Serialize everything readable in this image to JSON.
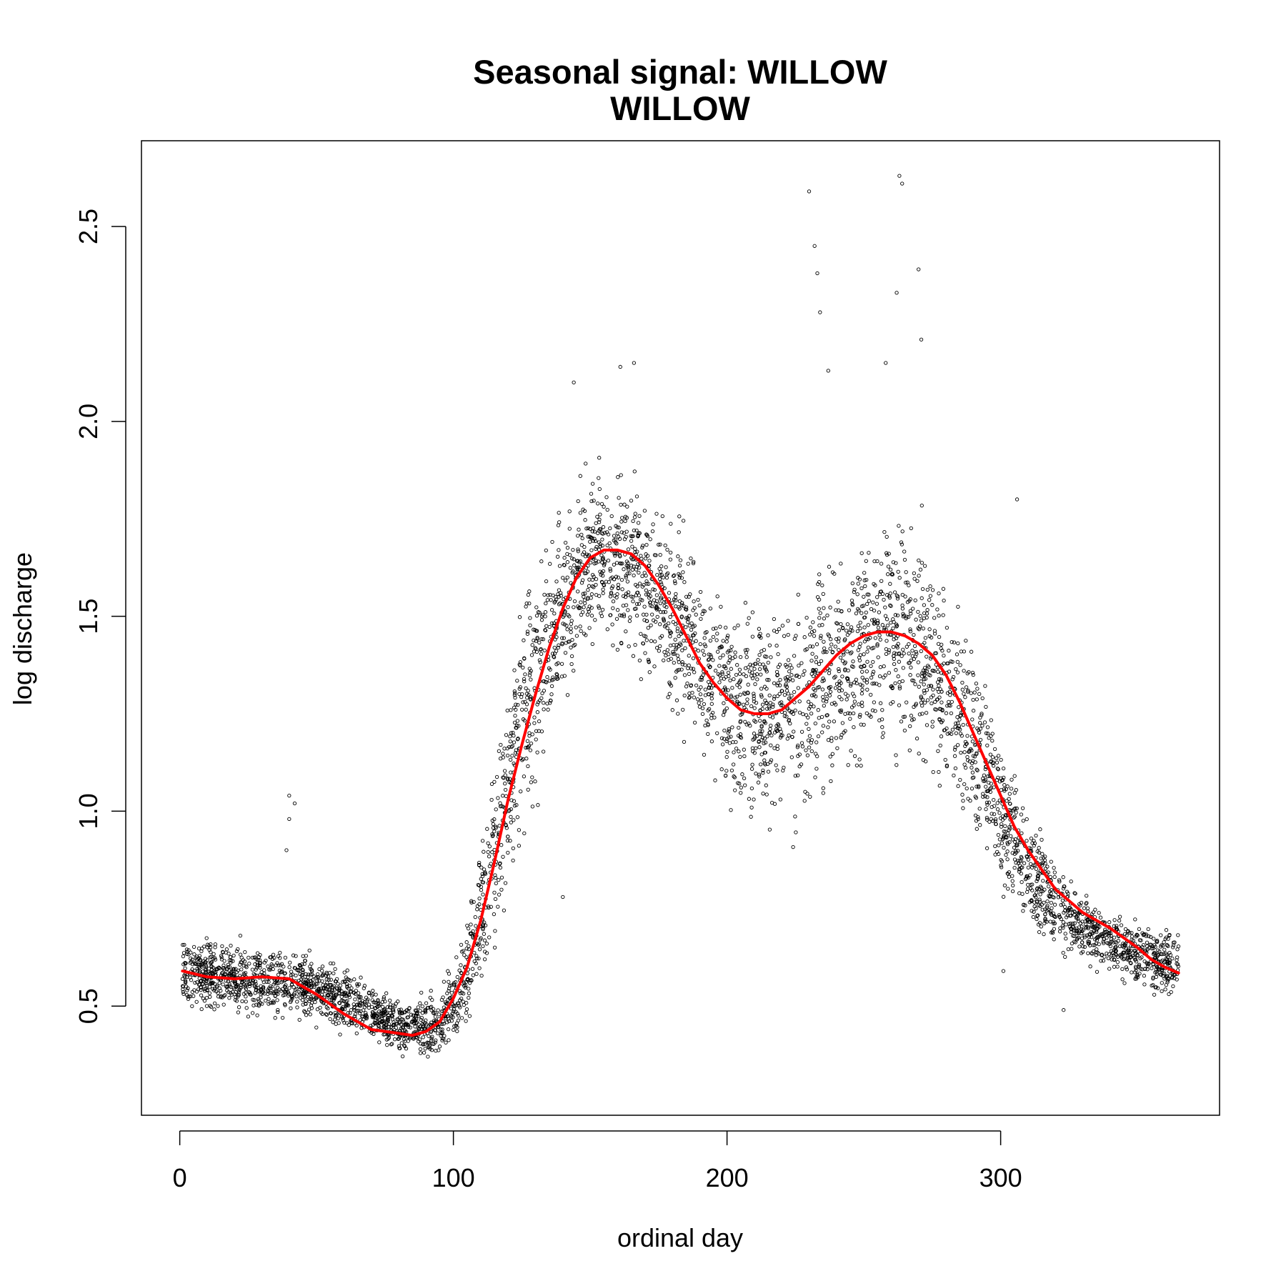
{
  "chart_data": {
    "type": "scatter",
    "title": [
      "Seasonal signal: WILLOW",
      "WILLOW"
    ],
    "xlabel": "ordinal day",
    "ylabel": "log discharge",
    "xlim": [
      -14,
      380
    ],
    "ylim": [
      0.22,
      2.72
    ],
    "xticks": [
      0,
      100,
      200,
      300
    ],
    "yticks": [
      0.5,
      1.0,
      1.5,
      2.0,
      2.5
    ],
    "xtick_labels": [
      "0",
      "100",
      "200",
      "300"
    ],
    "ytick_labels": [
      "0.5",
      "1.0",
      "1.5",
      "2.0",
      "2.5"
    ],
    "grid": false,
    "legend": "none",
    "colors": {
      "points": "#000000",
      "smooth": "#ff0000",
      "frame": "#000000"
    },
    "points_note_count": 5000,
    "series": [
      {
        "kind": "points",
        "marker": "open-circle",
        "envelope": {
          "x": [
            1,
            20,
            40,
            60,
            80,
            95,
            105,
            115,
            125,
            135,
            145,
            155,
            165,
            175,
            185,
            195,
            205,
            215,
            225,
            235,
            245,
            255,
            265,
            275,
            285,
            295,
            305,
            315,
            325,
            335,
            345,
            355,
            365
          ],
          "center": [
            0.59,
            0.57,
            0.56,
            0.52,
            0.45,
            0.45,
            0.58,
            0.9,
            1.25,
            1.45,
            1.6,
            1.66,
            1.62,
            1.55,
            1.45,
            1.33,
            1.27,
            1.25,
            1.28,
            1.33,
            1.4,
            1.45,
            1.45,
            1.38,
            1.25,
            1.08,
            0.92,
            0.8,
            0.73,
            0.68,
            0.65,
            0.62,
            0.6
          ],
          "spread": [
            0.1,
            0.1,
            0.1,
            0.09,
            0.08,
            0.1,
            0.15,
            0.3,
            0.35,
            0.3,
            0.25,
            0.25,
            0.25,
            0.25,
            0.28,
            0.3,
            0.3,
            0.3,
            0.32,
            0.33,
            0.33,
            0.33,
            0.33,
            0.32,
            0.3,
            0.25,
            0.2,
            0.15,
            0.12,
            0.1,
            0.1,
            0.1,
            0.1
          ]
        },
        "outliers": [
          {
            "x": 40,
            "y": 1.04
          },
          {
            "x": 42,
            "y": 1.02
          },
          {
            "x": 40,
            "y": 0.98
          },
          {
            "x": 39,
            "y": 0.9
          },
          {
            "x": 230,
            "y": 2.59
          },
          {
            "x": 232,
            "y": 2.45
          },
          {
            "x": 233,
            "y": 2.38
          },
          {
            "x": 234,
            "y": 2.28
          },
          {
            "x": 263,
            "y": 2.63
          },
          {
            "x": 264,
            "y": 2.61
          },
          {
            "x": 270,
            "y": 2.39
          },
          {
            "x": 262,
            "y": 2.33
          },
          {
            "x": 237,
            "y": 2.13
          },
          {
            "x": 258,
            "y": 2.15
          },
          {
            "x": 271,
            "y": 2.21
          },
          {
            "x": 166,
            "y": 2.15
          },
          {
            "x": 161,
            "y": 2.14
          },
          {
            "x": 144,
            "y": 2.1
          },
          {
            "x": 306,
            "y": 1.8
          },
          {
            "x": 323,
            "y": 0.49
          },
          {
            "x": 301,
            "y": 0.59
          },
          {
            "x": 140,
            "y": 0.78
          }
        ]
      },
      {
        "kind": "smooth",
        "x": [
          1,
          10,
          20,
          30,
          40,
          50,
          60,
          70,
          80,
          85,
          90,
          95,
          100,
          105,
          110,
          115,
          120,
          125,
          130,
          135,
          140,
          145,
          150,
          155,
          160,
          165,
          170,
          175,
          180,
          185,
          190,
          195,
          200,
          205,
          210,
          215,
          220,
          225,
          230,
          235,
          240,
          245,
          250,
          255,
          260,
          265,
          270,
          275,
          280,
          285,
          290,
          295,
          300,
          305,
          310,
          315,
          320,
          325,
          330,
          335,
          340,
          345,
          350,
          355,
          360,
          365
        ],
        "y": [
          0.59,
          0.575,
          0.57,
          0.575,
          0.57,
          0.53,
          0.48,
          0.44,
          0.43,
          0.425,
          0.435,
          0.46,
          0.52,
          0.6,
          0.72,
          0.87,
          1.03,
          1.17,
          1.3,
          1.42,
          1.52,
          1.6,
          1.65,
          1.67,
          1.67,
          1.66,
          1.63,
          1.58,
          1.52,
          1.45,
          1.38,
          1.33,
          1.29,
          1.26,
          1.25,
          1.25,
          1.26,
          1.29,
          1.32,
          1.36,
          1.4,
          1.43,
          1.45,
          1.46,
          1.46,
          1.45,
          1.43,
          1.4,
          1.35,
          1.28,
          1.2,
          1.12,
          1.04,
          0.96,
          0.9,
          0.85,
          0.8,
          0.77,
          0.74,
          0.72,
          0.7,
          0.675,
          0.65,
          0.62,
          0.6,
          0.585
        ]
      }
    ]
  }
}
